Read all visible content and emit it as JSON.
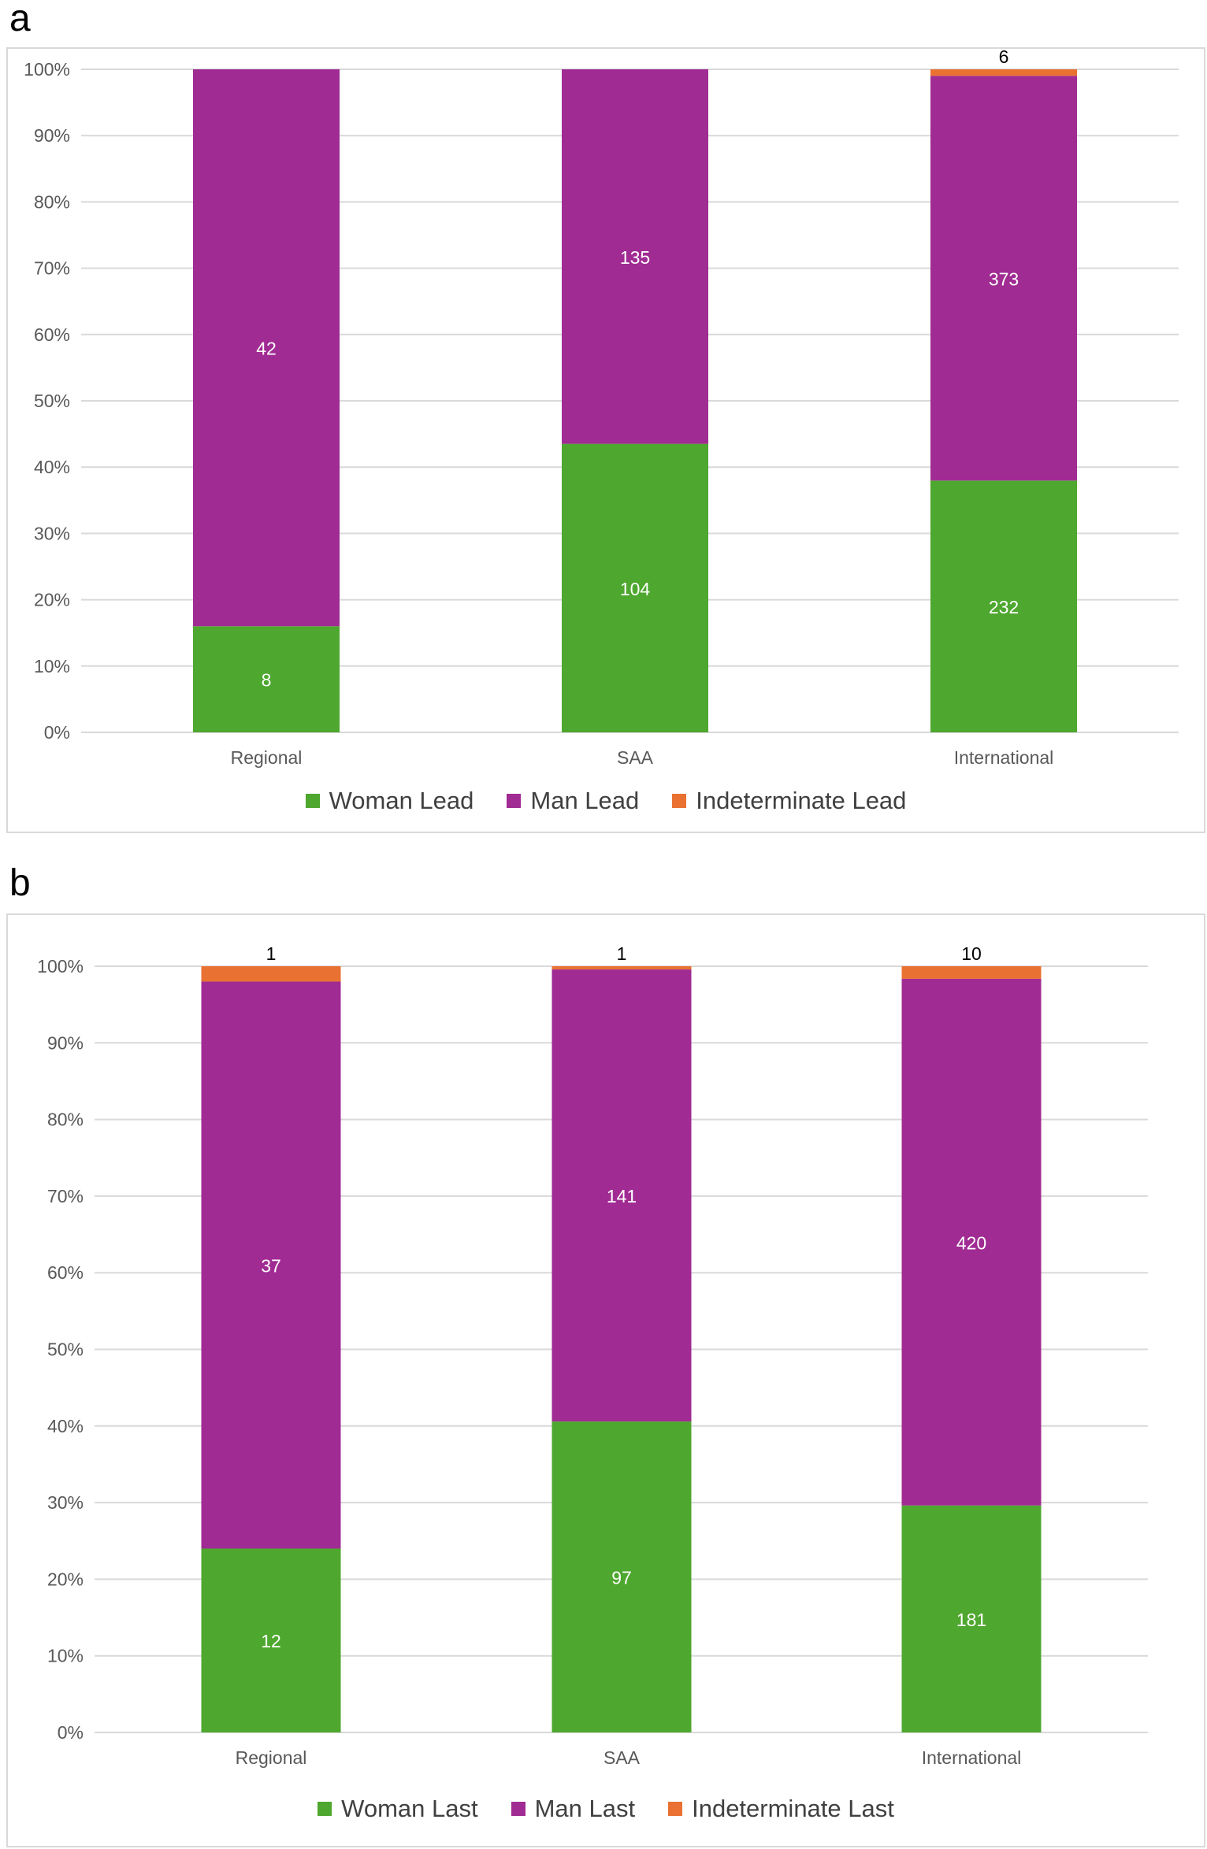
{
  "panels": [
    {
      "letter": "a"
    },
    {
      "letter": "b"
    }
  ],
  "chart_data": [
    {
      "type": "bar",
      "stacked": "percent",
      "categories": [
        "Regional",
        "SAA",
        "International"
      ],
      "series": [
        {
          "name": "Woman Lead",
          "color": "#4ea72e",
          "values": [
            8,
            104,
            232
          ],
          "label_color": "#ffffff"
        },
        {
          "name": "Man Lead",
          "color": "#a02b93",
          "values": [
            42,
            135,
            373
          ],
          "label_color": "#ffffff"
        },
        {
          "name": "Indeterminate Lead",
          "color": "#e97132",
          "values": [
            0,
            0,
            6
          ],
          "label_color": "#000000"
        }
      ],
      "yticks": [
        "0%",
        "10%",
        "20%",
        "30%",
        "40%",
        "50%",
        "60%",
        "70%",
        "80%",
        "90%",
        "100%"
      ],
      "ylim": [
        0,
        100
      ],
      "grid": true,
      "legend": "bottom"
    },
    {
      "type": "bar",
      "stacked": "percent",
      "categories": [
        "Regional",
        "SAA",
        "International"
      ],
      "series": [
        {
          "name": "Woman Last",
          "color": "#4ea72e",
          "values": [
            12,
            97,
            181
          ],
          "label_color": "#ffffff"
        },
        {
          "name": "Man Last",
          "color": "#a02b93",
          "values": [
            37,
            141,
            420
          ],
          "label_color": "#ffffff"
        },
        {
          "name": "Indeterminate Last",
          "color": "#e97132",
          "values": [
            1,
            1,
            10
          ],
          "label_color": "#000000"
        }
      ],
      "yticks": [
        "0%",
        "10%",
        "20%",
        "30%",
        "40%",
        "50%",
        "60%",
        "70%",
        "80%",
        "90%",
        "100%"
      ],
      "ylim": [
        0,
        100
      ],
      "grid": true,
      "legend": "bottom"
    }
  ]
}
